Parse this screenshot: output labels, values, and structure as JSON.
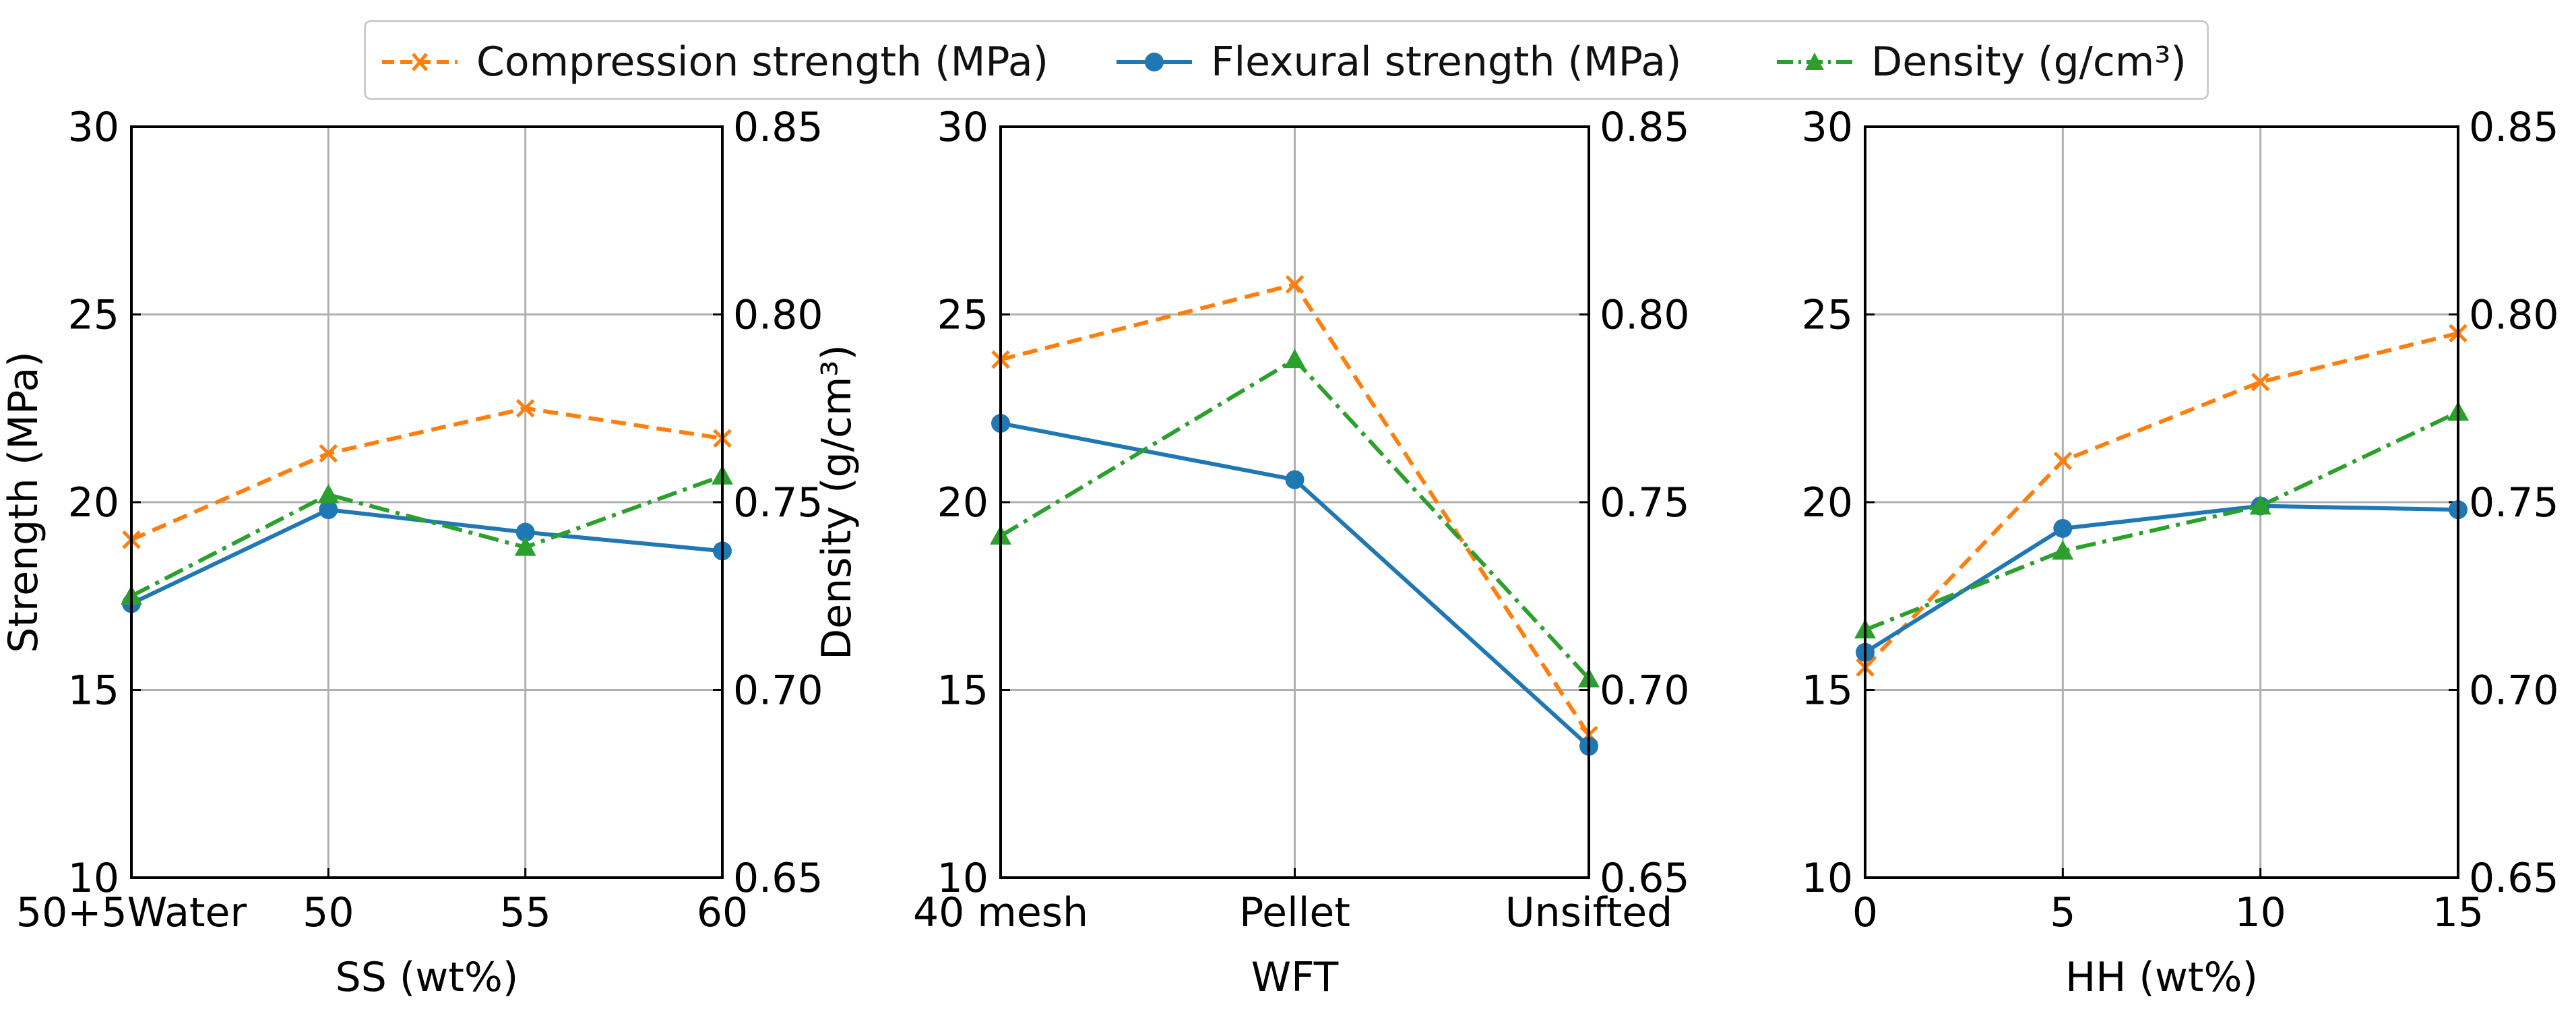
{
  "legend": {
    "compression": "Compression strength (MPa)",
    "flexural": "Flexural strength (MPa)",
    "density": "Density (g/cm³)"
  },
  "colors": {
    "compression": "#ff7f0e",
    "flexural": "#1f77b4",
    "density": "#2ca02c",
    "grid": "#b0b0b0",
    "axis": "#000000"
  },
  "chart_data": [
    {
      "type": "line",
      "xlabel": "SS (wt%)",
      "ylabel": "Strength (MPa)",
      "ylabel_right": "Density (g/cm³)",
      "categories": [
        "50+5Water",
        "50",
        "55",
        "60"
      ],
      "ylim": [
        10,
        30
      ],
      "yticks": [
        10,
        15,
        20,
        25,
        30
      ],
      "ylim_right": [
        0.65,
        0.85
      ],
      "yticks_right": [
        "0.65",
        "0.70",
        "0.75",
        "0.80",
        "0.85"
      ],
      "grid": true,
      "series": [
        {
          "name": "Compression strength (MPa)",
          "axis": "left",
          "values": [
            19.0,
            21.3,
            22.5,
            21.7
          ]
        },
        {
          "name": "Flexural strength (MPa)",
          "axis": "left",
          "values": [
            17.3,
            19.8,
            19.2,
            18.7
          ]
        },
        {
          "name": "Density (g/cm³)",
          "axis": "right",
          "values": [
            0.725,
            0.752,
            0.738,
            0.757
          ]
        }
      ]
    },
    {
      "type": "line",
      "xlabel": "WFT",
      "ylabel": "",
      "ylabel_right": "",
      "categories": [
        "40 mesh",
        "Pellet",
        "Unsifted"
      ],
      "ylim": [
        10,
        30
      ],
      "yticks": [
        10,
        15,
        20,
        25,
        30
      ],
      "ylim_right": [
        0.65,
        0.85
      ],
      "yticks_right": [
        "0.65",
        "0.70",
        "0.75",
        "0.80",
        "0.85"
      ],
      "grid": true,
      "series": [
        {
          "name": "Compression strength (MPa)",
          "axis": "left",
          "values": [
            23.8,
            25.8,
            13.8
          ]
        },
        {
          "name": "Flexural strength (MPa)",
          "axis": "left",
          "values": [
            22.1,
            20.6,
            13.5
          ]
        },
        {
          "name": "Density (g/cm³)",
          "axis": "right",
          "values": [
            0.741,
            0.788,
            0.703
          ]
        }
      ]
    },
    {
      "type": "line",
      "xlabel": "HH (wt%)",
      "ylabel": "",
      "ylabel_right": "",
      "categories": [
        "0",
        "5",
        "10",
        "15"
      ],
      "ylim": [
        10,
        30
      ],
      "yticks": [
        10,
        15,
        20,
        25,
        30
      ],
      "ylim_right": [
        0.65,
        0.85
      ],
      "yticks_right": [
        "0.65",
        "0.70",
        "0.75",
        "0.80",
        "0.85"
      ],
      "grid": true,
      "series": [
        {
          "name": "Compression strength (MPa)",
          "axis": "left",
          "values": [
            15.6,
            21.1,
            23.2,
            24.5
          ]
        },
        {
          "name": "Flexural strength (MPa)",
          "axis": "left",
          "values": [
            16.0,
            19.3,
            19.9,
            19.8
          ]
        },
        {
          "name": "Density (g/cm³)",
          "axis": "right",
          "values": [
            0.716,
            0.737,
            0.749,
            0.774
          ]
        }
      ]
    }
  ]
}
